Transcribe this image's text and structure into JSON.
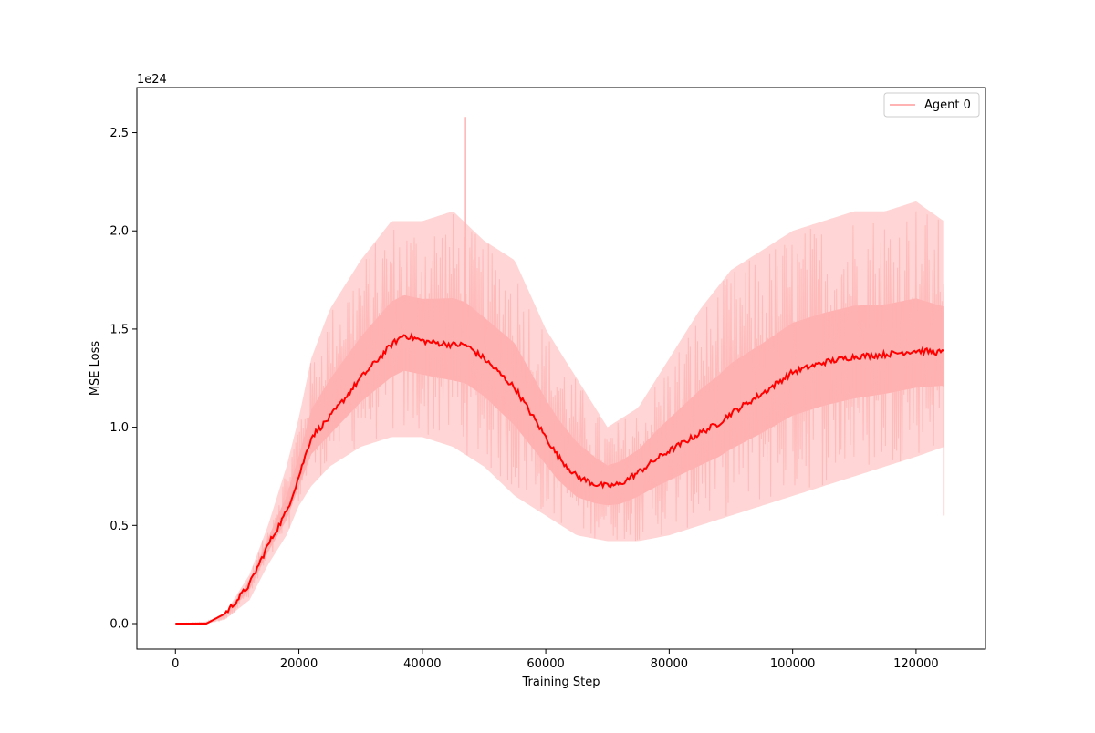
{
  "chart_data": {
    "type": "line",
    "title": "",
    "xlabel": "Training Step",
    "ylabel": "MSE Loss",
    "y_offset_label": "1e24",
    "xlim": [
      -6250,
      131250
    ],
    "ylim": [
      -0.13,
      2.73
    ],
    "x_ticks": [
      0,
      20000,
      40000,
      60000,
      80000,
      100000,
      120000
    ],
    "x_tick_labels": [
      "0",
      "20000",
      "40000",
      "60000",
      "80000",
      "100000",
      "120000"
    ],
    "y_ticks": [
      0.0,
      0.5,
      1.0,
      1.5,
      2.0,
      2.5
    ],
    "y_tick_labels": [
      "0.0",
      "0.5",
      "1.0",
      "1.5",
      "2.0",
      "2.5"
    ],
    "grid": false,
    "legend": {
      "position": "top-right",
      "entries": [
        "Agent 0"
      ]
    },
    "colors": {
      "raw": "#ffb3b3",
      "mean": "#ff0000",
      "band_outer": "#ff9999",
      "band_inner": "#ff4d4d"
    },
    "series": [
      {
        "name": "Agent 0",
        "role": "raw",
        "x": [
          0,
          5000,
          8000,
          10000,
          12000,
          15000,
          18000,
          20000,
          22000,
          25000,
          30000,
          35000,
          40000,
          45000,
          50000,
          55000,
          60000,
          65000,
          70000,
          75000,
          80000,
          85000,
          90000,
          95000,
          100000,
          105000,
          110000,
          115000,
          120000,
          124500
        ],
        "upper": [
          0,
          0.01,
          0.05,
          0.15,
          0.25,
          0.5,
          0.8,
          1.05,
          1.35,
          1.6,
          1.85,
          2.05,
          2.05,
          2.1,
          1.95,
          1.85,
          1.5,
          1.25,
          1.0,
          1.1,
          1.35,
          1.6,
          1.8,
          1.9,
          2.0,
          2.05,
          2.1,
          2.1,
          2.15,
          2.05
        ],
        "lower": [
          0,
          0.0,
          0.02,
          0.07,
          0.12,
          0.3,
          0.45,
          0.6,
          0.7,
          0.8,
          0.9,
          0.95,
          0.95,
          0.9,
          0.8,
          0.65,
          0.55,
          0.45,
          0.42,
          0.42,
          0.45,
          0.5,
          0.55,
          0.6,
          0.65,
          0.7,
          0.75,
          0.8,
          0.85,
          0.9
        ],
        "spike_x": [
          47000,
          124500
        ],
        "spike_y": [
          2.58,
          0.55
        ]
      },
      {
        "role": "mean",
        "x": [
          0,
          5000,
          8000,
          10000,
          12000,
          15000,
          18000,
          20000,
          22000,
          25000,
          30000,
          35000,
          37000,
          40000,
          42000,
          45000,
          47000,
          50000,
          55000,
          58000,
          60000,
          62000,
          65000,
          68000,
          70000,
          72000,
          75000,
          78000,
          80000,
          85000,
          88000,
          90000,
          95000,
          100000,
          105000,
          110000,
          115000,
          120000,
          124500
        ],
        "values": [
          0,
          0.0,
          0.05,
          0.12,
          0.2,
          0.4,
          0.57,
          0.75,
          0.95,
          1.05,
          1.25,
          1.42,
          1.47,
          1.44,
          1.43,
          1.42,
          1.42,
          1.35,
          1.2,
          1.05,
          0.95,
          0.85,
          0.75,
          0.71,
          0.7,
          0.71,
          0.77,
          0.84,
          0.88,
          0.97,
          1.02,
          1.07,
          1.17,
          1.28,
          1.33,
          1.36,
          1.37,
          1.39,
          1.38
        ]
      }
    ]
  }
}
